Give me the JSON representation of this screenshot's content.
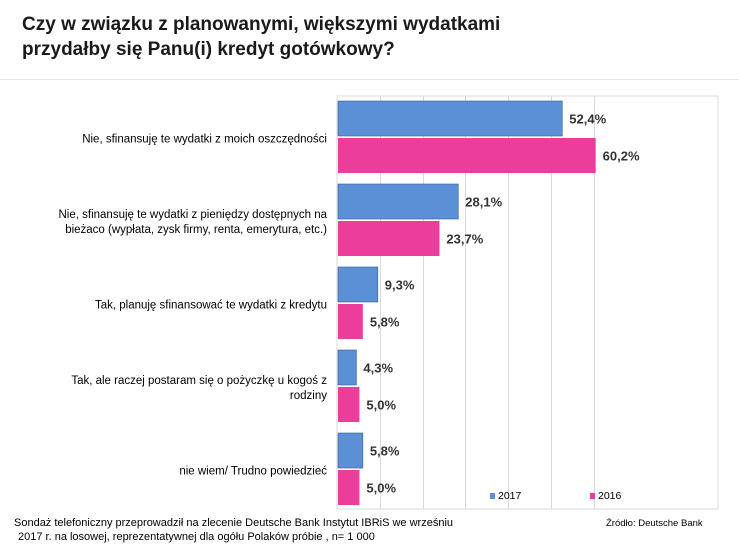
{
  "title_line1": "Czy w związku z planowanymi, większymi wydatkami",
  "title_line2": "przydałby się Panu(i) kredyt gotówkowy?",
  "footnote_line1": "Sondaż telefoniczny przeprowadził na zlecenie Deutsche Bank  Instytut IBRiS we wrześniu",
  "footnote_line2": "2017 r. na losowej, reprezentatywnej dla ogółu Polaków próbie , n= 1 000",
  "source": "Źródło: Deutsche Bank",
  "chart_data": {
    "type": "bar",
    "orientation": "horizontal",
    "title": "Czy w związku z planowanymi, większymi wydatkami przydałby się Panu(i) kredyt gotówkowy?",
    "categories": [
      [
        "Nie, sfinansuję te wydatki z moich oszczędności"
      ],
      [
        "Nie, sfinansuję te wydatki z pieniędzy dostępnych na",
        "bieżaco (wypłata, zysk firmy, renta, emerytura, etc.)"
      ],
      [
        "Tak, planuję sfinansować te wydatki z kredytu"
      ],
      [
        "Tak, ale raczej postaram się o pożyczkę u kogoś z",
        "rodziny"
      ],
      [
        "nie wiem/ Trudno powiedzieć"
      ]
    ],
    "series": [
      {
        "name": "2017",
        "color": "#5b8fd6",
        "values": [
          52.4,
          28.1,
          9.3,
          4.3,
          5.8
        ],
        "labels": [
          "52,4%",
          "28,1%",
          "9,3%",
          "4,3%",
          "5,8%"
        ]
      },
      {
        "name": "2016",
        "color": "#ec3d9a",
        "values": [
          60.2,
          23.7,
          5.8,
          5.0,
          5.0
        ],
        "labels": [
          "60,2%",
          "23,7%",
          "5,8%",
          "5,0%",
          "5,0%"
        ]
      }
    ],
    "xlim": [
      0,
      70
    ],
    "grid": true,
    "legend_position": "bottom-right"
  }
}
